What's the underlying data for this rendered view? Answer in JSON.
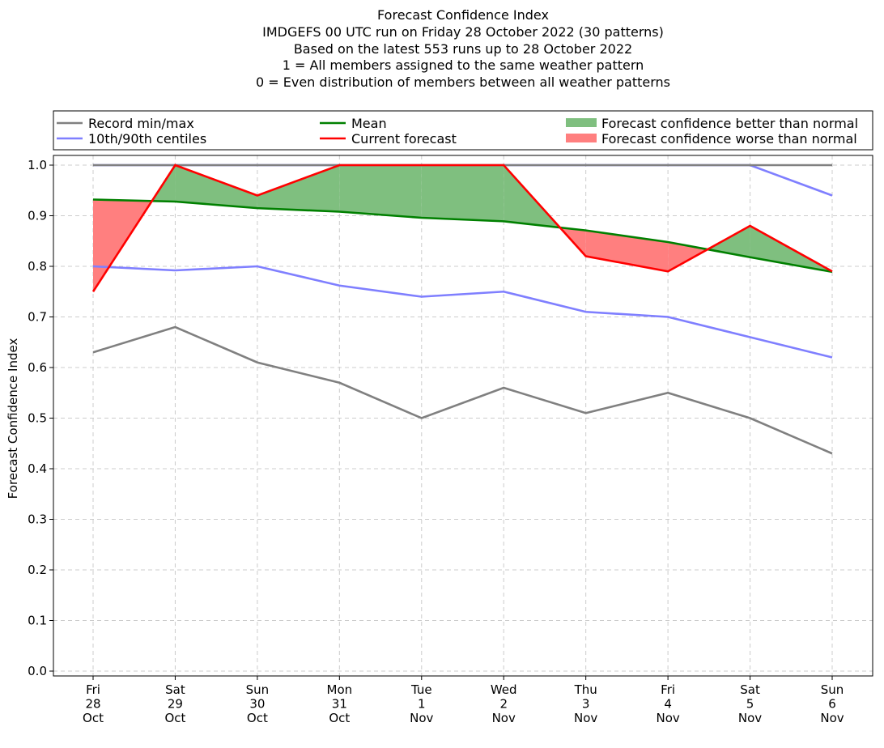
{
  "chart_data": {
    "type": "line",
    "title_lines": [
      "Forecast Confidence Index",
      "IMDGEFS 00 UTC run on Friday 28 October 2022 (30 patterns)",
      "Based on the latest 553 runs up to 28 October 2022",
      "1 = All members assigned to the same weather pattern",
      "0 = Even distribution of members between all weather patterns"
    ],
    "ylabel": "Forecast Confidence Index",
    "xlabel": "",
    "ylim": [
      0.0,
      1.0
    ],
    "yticks": [
      "0.0",
      "0.1",
      "0.2",
      "0.3",
      "0.4",
      "0.5",
      "0.6",
      "0.7",
      "0.8",
      "0.9",
      "1.0"
    ],
    "grid": true,
    "legend_position": "top, above plot, three columns",
    "x_labels": [
      [
        "Fri",
        "28",
        "Oct"
      ],
      [
        "Sat",
        "29",
        "Oct"
      ],
      [
        "Sun",
        "30",
        "Oct"
      ],
      [
        "Mon",
        "31",
        "Oct"
      ],
      [
        "Tue",
        "1",
        "Nov"
      ],
      [
        "Wed",
        "2",
        "Nov"
      ],
      [
        "Thu",
        "3",
        "Nov"
      ],
      [
        "Fri",
        "4",
        "Nov"
      ],
      [
        "Sat",
        "5",
        "Nov"
      ],
      [
        "Sun",
        "6",
        "Nov"
      ]
    ],
    "series": [
      {
        "key": "record_max",
        "name": "Record min/max",
        "color": "#808080",
        "values": [
          1.0,
          1.0,
          1.0,
          1.0,
          1.0,
          1.0,
          1.0,
          1.0,
          1.0,
          1.0
        ]
      },
      {
        "key": "record_min",
        "name": "Record min/max",
        "color": "#808080",
        "values": [
          0.63,
          0.68,
          0.61,
          0.57,
          0.5,
          0.56,
          0.51,
          0.55,
          0.5,
          0.43
        ]
      },
      {
        "key": "p90",
        "name": "10th/90th centiles",
        "color": "#7f7fff",
        "values": [
          1.0,
          1.0,
          1.0,
          1.0,
          1.0,
          1.0,
          1.0,
          1.0,
          1.0,
          0.94
        ]
      },
      {
        "key": "p10",
        "name": "10th/90th centiles",
        "color": "#7f7fff",
        "values": [
          0.8,
          0.792,
          0.8,
          0.762,
          0.74,
          0.75,
          0.71,
          0.7,
          0.66,
          0.62
        ]
      },
      {
        "key": "mean",
        "name": "Mean",
        "color": "#008000",
        "values": [
          0.932,
          0.928,
          0.915,
          0.908,
          0.896,
          0.889,
          0.871,
          0.848,
          0.818,
          0.789
        ]
      },
      {
        "key": "current",
        "name": "Current forecast",
        "color": "#ff0000",
        "values": [
          0.75,
          1.0,
          0.94,
          1.0,
          1.0,
          1.0,
          0.82,
          0.79,
          0.88,
          0.79
        ]
      }
    ],
    "fills": [
      {
        "name": "Forecast confidence better than normal",
        "color": "#7fbf7f"
      },
      {
        "name": "Forecast confidence worse than normal",
        "color": "#ff7f7f"
      }
    ],
    "legend": [
      {
        "label": "Record min/max",
        "kind": "line",
        "color": "#808080"
      },
      {
        "label": "10th/90th centiles",
        "kind": "line",
        "color": "#7f7fff"
      },
      {
        "label": "Mean",
        "kind": "line",
        "color": "#008000"
      },
      {
        "label": "Current forecast",
        "kind": "line",
        "color": "#ff0000"
      },
      {
        "label": "Forecast confidence better than normal",
        "kind": "patch",
        "color": "#7fbf7f"
      },
      {
        "label": "Forecast confidence worse than normal",
        "kind": "patch",
        "color": "#ff7f7f"
      }
    ]
  }
}
